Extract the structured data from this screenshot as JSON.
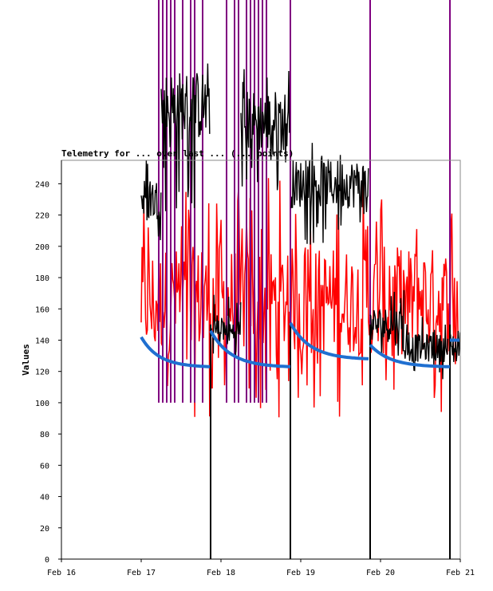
{
  "chart_data": {
    "type": "line",
    "title": "Telemetry for ... over last ... (... points)",
    "ylabel": "Values",
    "xlabel": "",
    "ylim": [
      0,
      255
    ],
    "y_ticks": [
      0,
      20,
      40,
      60,
      80,
      100,
      120,
      140,
      160,
      180,
      200,
      220,
      240
    ],
    "x_ticks": [
      "Feb 16",
      "Feb 17",
      "Feb 18",
      "Feb 19",
      "Feb 20",
      "Feb 21"
    ],
    "x_range_days": [
      0,
      5
    ],
    "grid": false,
    "colors": {
      "red_series": "#ff0000",
      "black_series": "#000000",
      "purple_series": "#800080",
      "blue_series": "#1f6fd0"
    },
    "series": [
      {
        "color": "red_series",
        "segments": [
          {
            "start": 1.0,
            "end": 4.98,
            "low": 90,
            "high": 245,
            "center": 165
          }
        ]
      },
      {
        "color": "black_series",
        "segments": [
          {
            "start": 1.0,
            "end": 1.25,
            "low": 200,
            "high": 260,
            "center": 230
          },
          {
            "start": 1.25,
            "end": 1.86,
            "low": 220,
            "high": 320,
            "center": 290
          },
          {
            "start": 1.88,
            "end": 2.25,
            "low": 130,
            "high": 170,
            "center": 145
          },
          {
            "start": 2.25,
            "end": 2.86,
            "low": 230,
            "high": 320,
            "center": 280
          },
          {
            "start": 2.88,
            "end": 3.85,
            "low": 200,
            "high": 270,
            "center": 240
          },
          {
            "start": 3.87,
            "end": 4.3,
            "low": 130,
            "high": 180,
            "center": 150
          },
          {
            "start": 4.3,
            "end": 4.85,
            "low": 115,
            "high": 155,
            "center": 135
          },
          {
            "start": 4.87,
            "end": 5.0,
            "low": 110,
            "high": 160,
            "center": 135
          }
        ],
        "drops_to_zero": [
          1.87,
          2.87,
          3.87,
          4.87
        ]
      },
      {
        "color": "purple_series",
        "spikes": [
          1.22,
          1.27,
          1.32,
          1.37,
          1.42,
          1.52,
          1.62,
          1.67,
          1.77,
          2.07,
          2.17,
          2.22,
          2.32,
          2.37,
          2.42,
          2.47,
          2.52,
          2.57,
          2.87,
          3.87,
          4.87
        ],
        "spike_low": 100,
        "spike_high": 255
      },
      {
        "color": "blue_series",
        "segments": [
          {
            "start": 1.0,
            "end": 1.87,
            "from": 142,
            "to": 123
          },
          {
            "start": 1.87,
            "end": 2.87,
            "from": 146,
            "to": 123
          },
          {
            "start": 2.87,
            "end": 3.87,
            "from": 151,
            "to": 128
          },
          {
            "start": 3.87,
            "end": 4.87,
            "from": 137,
            "to": 123
          },
          {
            "start": 4.87,
            "end": 5.0,
            "from": 140,
            "to": 140
          }
        ]
      }
    ]
  }
}
